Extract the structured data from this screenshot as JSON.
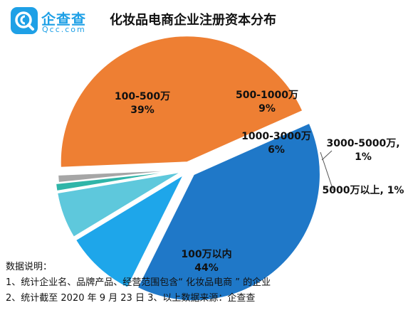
{
  "brand": {
    "name": "企查查",
    "sub": "Qcc.com",
    "color": "#1ea0e6"
  },
  "header": {
    "title": "化妆品电商企业注册资本分布"
  },
  "notes": {
    "heading": "数据说明：",
    "line1": "1、统计企业名、品牌产品、经营范围包含“ 化妆品电商 ” 的企业",
    "line2": "2、统计截至 2020 年 9 月 23 日  3、以上数据来源：企查查"
  },
  "chart_data": {
    "type": "pie",
    "title": "化妆品电商企业注册资本分布",
    "slices": [
      {
        "label": "100-500万",
        "value": 39,
        "value_label": "39%",
        "color": "#1f78c8"
      },
      {
        "label": "500-1000万",
        "value": 9,
        "value_label": "9%",
        "color": "#1ea6ea"
      },
      {
        "label": "1000-3000万",
        "value": 6,
        "value_label": "6%",
        "color": "#5ec8dc"
      },
      {
        "label": "3000-5000万,",
        "value": 1,
        "value_label": "1%",
        "color": "#2fb5a8"
      },
      {
        "label": "5000万以上,",
        "value": 1,
        "value_label": "1%",
        "color": "#a6a6a6"
      },
      {
        "label": "100万以内",
        "value": 44,
        "value_label": "44%",
        "color": "#ee7f33"
      }
    ]
  }
}
